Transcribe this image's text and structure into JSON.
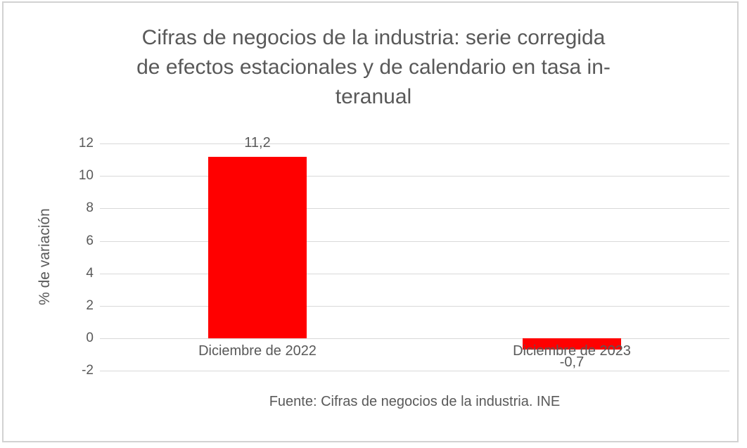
{
  "title_display": "Cifras de negocios de la industria: serie corregida\nde efectos estacionales y de calendario en tasa in-\nteranual",
  "footer": "Fuente: Cifras de negocios de la industria. INE",
  "colors": {
    "bar": "#ff0000",
    "text": "#595959",
    "gridline": "#d9d9d9",
    "frame_border": "#d2d2d2"
  },
  "chart_data": {
    "type": "bar",
    "title": "Cifras de negocios de la industria: serie corregida de efectos estacionales y de calendario en tasa interanual",
    "categories": [
      "Diciembre de 2022",
      "Diciembre de 2023"
    ],
    "values": [
      11.2,
      -0.7
    ],
    "data_labels": [
      "11,2",
      "-0,7"
    ],
    "xlabel": "",
    "ylabel": "% de variación",
    "ylim": [
      -2,
      12
    ],
    "yticks": [
      12,
      10,
      8,
      6,
      4,
      2,
      0,
      -2
    ],
    "grid": "horizontal",
    "legend": "none",
    "source": "Fuente: Cifras de negocios de la industria. INE"
  }
}
